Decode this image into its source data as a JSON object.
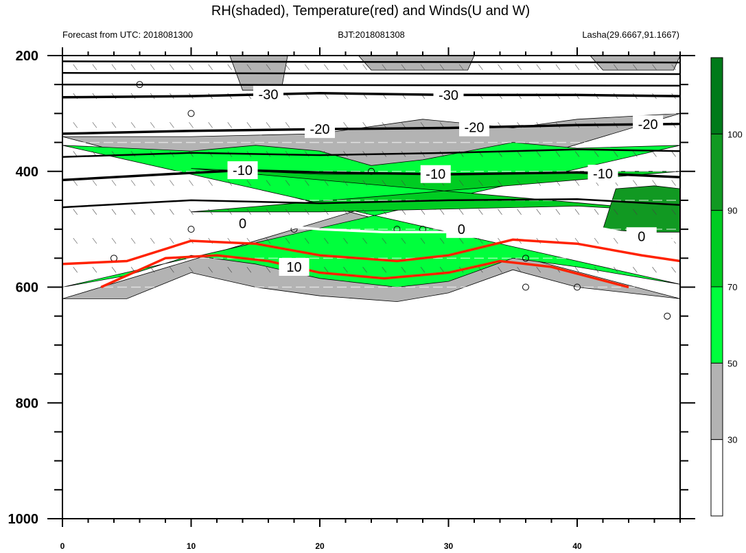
{
  "chart_data": {
    "type": "contour",
    "title": "RH(shaded), Temperature(red) and Winds(U and W)",
    "subtitle_left": "Forecast from UTC: 2018081300",
    "subtitle_center": "BJT:2018081308",
    "subtitle_right": "Lasha(29.6667,91.1667)",
    "xlim": [
      0,
      48
    ],
    "ylim": [
      200,
      1000
    ],
    "y_reversed": true,
    "xticks": [
      0,
      10,
      20,
      30,
      40
    ],
    "yticks": [
      200,
      400,
      600,
      800,
      1000
    ],
    "ground_pressure": 620,
    "rh_levels": [
      30,
      50,
      70,
      90,
      100
    ],
    "rh_colors": [
      "#ffffff",
      "#b3b3b3",
      "#00ff3c",
      "#00cc22",
      "#119922",
      "#007a1a"
    ],
    "rh_regions": [
      {
        "color": "#b3b3b3",
        "top": [
          [
            0,
            340
          ],
          [
            10,
            340
          ],
          [
            20,
            335
          ],
          [
            28,
            310
          ],
          [
            35,
            325
          ],
          [
            40,
            310
          ],
          [
            48,
            300
          ]
        ],
        "bottom": [
          [
            0,
            620
          ],
          [
            5,
            620
          ],
          [
            10,
            575
          ],
          [
            15,
            600
          ],
          [
            20,
            615
          ],
          [
            26,
            625
          ],
          [
            30,
            610
          ],
          [
            35,
            570
          ],
          [
            40,
            600
          ],
          [
            48,
            620
          ]
        ]
      },
      {
        "color": "#00ff3c",
        "top": [
          [
            0,
            355
          ],
          [
            5,
            360
          ],
          [
            10,
            365
          ],
          [
            15,
            355
          ],
          [
            20,
            365
          ],
          [
            24,
            390
          ],
          [
            28,
            380
          ],
          [
            35,
            350
          ],
          [
            40,
            360
          ],
          [
            48,
            355
          ]
        ],
        "bottom": [
          [
            0,
            600
          ],
          [
            5,
            580
          ],
          [
            10,
            545
          ],
          [
            15,
            560
          ],
          [
            20,
            585
          ],
          [
            26,
            600
          ],
          [
            30,
            590
          ],
          [
            35,
            550
          ],
          [
            40,
            565
          ],
          [
            48,
            595
          ]
        ]
      },
      {
        "color": "#00cc22",
        "top": [
          [
            10,
            395
          ],
          [
            20,
            405
          ],
          [
            30,
            405
          ],
          [
            40,
            400
          ],
          [
            48,
            400
          ]
        ],
        "bottom": [
          [
            10,
            470
          ],
          [
            20,
            470
          ],
          [
            30,
            465
          ],
          [
            40,
            460
          ],
          [
            48,
            470
          ]
        ]
      },
      {
        "color": "#119922",
        "top": [
          [
            43,
            430
          ],
          [
            46,
            425
          ],
          [
            48,
            430
          ]
        ],
        "bottom": [
          [
            48,
            505
          ],
          [
            45,
            505
          ],
          [
            42,
            500
          ]
        ]
      }
    ],
    "rh_upper_patches": [
      {
        "color": "#b3b3b3",
        "x": [
          13,
          17.5
        ],
        "p_bottom": 260
      },
      {
        "color": "#b3b3b3",
        "x": [
          23,
          32
        ],
        "p_bottom": 225
      },
      {
        "color": "#b3b3b3",
        "x": [
          41,
          48
        ],
        "p_bottom": 225
      }
    ],
    "temperature_isotherms": [
      {
        "level": -30,
        "color": "#000000",
        "points": [
          [
            0,
            272
          ],
          [
            10,
            270
          ],
          [
            20,
            265
          ],
          [
            30,
            268
          ],
          [
            40,
            268
          ],
          [
            48,
            270
          ]
        ]
      },
      {
        "level": -20,
        "color": "#000000",
        "points": [
          [
            0,
            335
          ],
          [
            10,
            330
          ],
          [
            20,
            327
          ],
          [
            30,
            325
          ],
          [
            40,
            320
          ],
          [
            48,
            318
          ]
        ]
      },
      {
        "level": -10,
        "color": "#000000",
        "points": [
          [
            0,
            415
          ],
          [
            8,
            405
          ],
          [
            14,
            398
          ],
          [
            20,
            402
          ],
          [
            30,
            405
          ],
          [
            40,
            402
          ],
          [
            48,
            410
          ]
        ]
      },
      {
        "level": 0,
        "color": "#ffffff",
        "points": [
          [
            0,
            505
          ],
          [
            5,
            505
          ],
          [
            10,
            490
          ],
          [
            15,
            490
          ],
          [
            20,
            500
          ],
          [
            25,
            505
          ],
          [
            30,
            505
          ],
          [
            35,
            478
          ],
          [
            40,
            490
          ],
          [
            45,
            512
          ],
          [
            48,
            520
          ]
        ]
      },
      {
        "level": 10,
        "color": "#ff2200",
        "points": [
          [
            3,
            600
          ],
          [
            8,
            550
          ],
          [
            12,
            545
          ],
          [
            16,
            555
          ],
          [
            20,
            575
          ],
          [
            25,
            585
          ],
          [
            30,
            575
          ],
          [
            34,
            555
          ],
          [
            38,
            565
          ],
          [
            44,
            600
          ]
        ]
      }
    ],
    "isotherm_labels": [
      "-30",
      "-20",
      "-10",
      "0",
      "10"
    ],
    "colorbar_labels": [
      "30",
      "50",
      "70",
      "90",
      "100"
    ],
    "wind_calm_points": [
      [
        6,
        250
      ],
      [
        10,
        300
      ],
      [
        4,
        550
      ],
      [
        10,
        500
      ],
      [
        18,
        500
      ],
      [
        24,
        400
      ],
      [
        26,
        500
      ],
      [
        28,
        500
      ],
      [
        36,
        550
      ],
      [
        36,
        600
      ],
      [
        40,
        600
      ],
      [
        47,
        650
      ]
    ]
  }
}
